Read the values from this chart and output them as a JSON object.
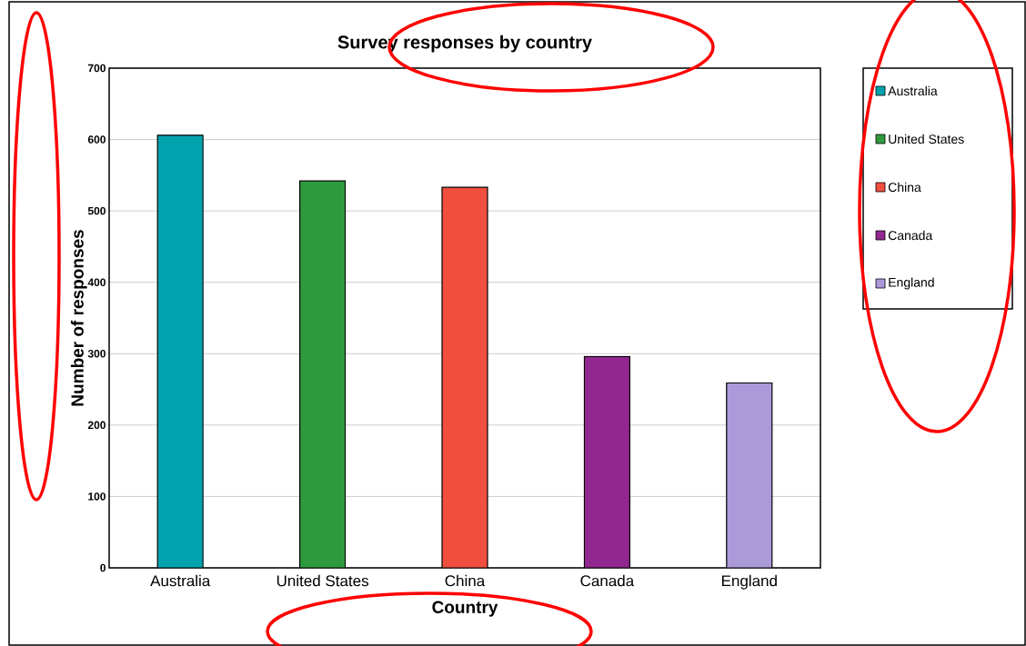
{
  "chart_data": {
    "type": "bar",
    "title": "Survey responses by country",
    "xlabel": "Country",
    "ylabel": "Number of responses",
    "categories": [
      "Australia",
      "United States",
      "China",
      "Canada",
      "England"
    ],
    "series": [
      {
        "name": "Australia",
        "color": "#00a3ad",
        "values": [
          606,
          null,
          null,
          null,
          null
        ]
      },
      {
        "name": "United States",
        "color": "#2e9a3e",
        "values": [
          null,
          542,
          null,
          null,
          null
        ]
      },
      {
        "name": "China",
        "color": "#f04e3e",
        "values": [
          null,
          null,
          533,
          null,
          null
        ]
      },
      {
        "name": "Canada",
        "color": "#92278f",
        "values": [
          null,
          null,
          null,
          296,
          null
        ]
      },
      {
        "name": "England",
        "color": "#ab9ada",
        "values": [
          null,
          null,
          null,
          null,
          259
        ]
      }
    ],
    "ylim": [
      0,
      700
    ],
    "yticks": [
      0,
      100,
      200,
      300,
      400,
      500,
      600,
      700
    ],
    "grid": "y",
    "legend": "right"
  }
}
